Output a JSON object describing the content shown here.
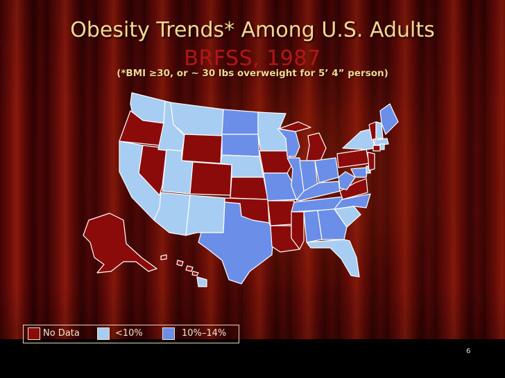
{
  "slide": {
    "title": "Obesity Trends* Among U.S. Adults",
    "subtitle": "BRFSS, 1987",
    "note": "(*BMI ≥30, or ~ 30 lbs overweight for 5’ 4” person)",
    "page_number": "6"
  },
  "legend": [
    {
      "label": "No Data",
      "color": "#8b0a0a"
    },
    {
      "label": "<10%",
      "color": "#a8cdf2"
    },
    {
      "label": "10%–14%",
      "color": "#6b8fe8"
    }
  ],
  "colors": {
    "no_data": "#8b0a0a",
    "under_10": "#a8cdf2",
    "10_to_14": "#6b8fe8",
    "title": "#f2d890",
    "subtitle": "#b01818"
  }
}
